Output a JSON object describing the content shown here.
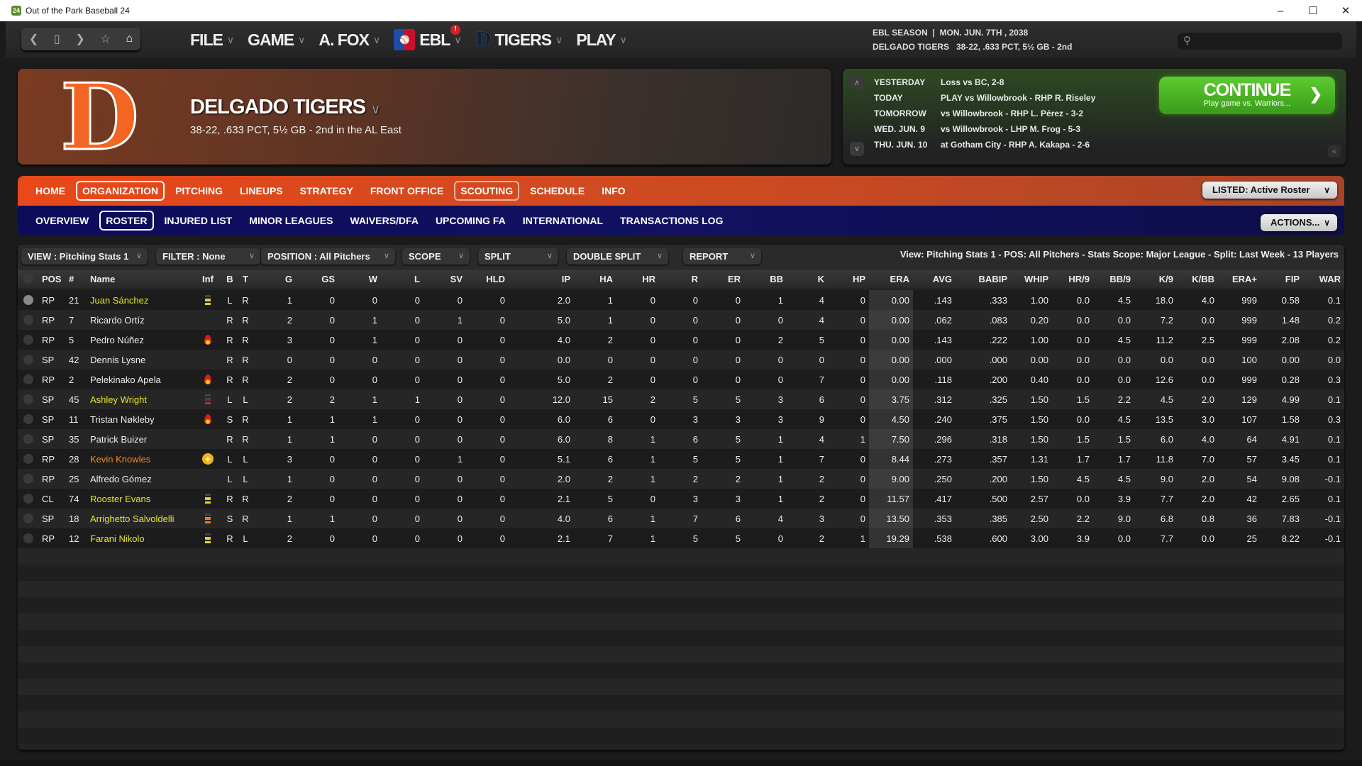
{
  "window": {
    "title": "Out of the Park Baseball 24",
    "app_icon": "24",
    "controls": [
      "–",
      "☐",
      "✕"
    ]
  },
  "topnav": {
    "nav_icons": [
      "back-icon",
      "bookmark-icon",
      "forward-icon",
      "star-icon",
      "home-icon"
    ],
    "menus": [
      {
        "label": "FILE"
      },
      {
        "label": "GAME"
      },
      {
        "label": "A. FOX"
      },
      {
        "label": "EBL",
        "badge": "!"
      },
      {
        "label": "TIGERS"
      },
      {
        "label": "PLAY"
      }
    ],
    "season_line1": "EBL SEASON  |  MON. JUN. 7TH , 2038",
    "season_line2": "DELGADO TIGERS   38-22, .633 PCT, 5½ GB - 2nd",
    "search_placeholder": ""
  },
  "team": {
    "name": "DELGADO TIGERS",
    "record": "38-22, .633 PCT, 5½ GB - 2nd in the AL East",
    "logo_letter": "D",
    "logo_color": "#f26522"
  },
  "schedule": {
    "rows": [
      {
        "day": "YESTERDAY",
        "text": "Loss vs BC, 2-8"
      },
      {
        "day": "TODAY",
        "text": "PLAY vs Willowbrook - RHP R. Riseley"
      },
      {
        "day": "TOMORROW",
        "text": "vs Willowbrook - RHP L. Pérez - 3-2"
      },
      {
        "day": "WED. JUN. 9",
        "text": "vs Willowbrook - LHP M. Frog - 5-3"
      },
      {
        "day": "THU. JUN. 10",
        "text": "at Gotham City - RHP A. Kakapa - 2-6"
      }
    ],
    "continue_label": "CONTINUE",
    "continue_sub": "Play game vs. Warriors..."
  },
  "org_tabs": [
    {
      "label": "HOME"
    },
    {
      "label": "ORGANIZATION",
      "active": true
    },
    {
      "label": "PITCHING"
    },
    {
      "label": "LINEUPS"
    },
    {
      "label": "STRATEGY"
    },
    {
      "label": "FRONT OFFICE"
    },
    {
      "label": "SCOUTING",
      "outlined": true
    },
    {
      "label": "SCHEDULE"
    },
    {
      "label": "INFO"
    }
  ],
  "sub_tabs": [
    {
      "label": "OVERVIEW"
    },
    {
      "label": "ROSTER",
      "active": true
    },
    {
      "label": "INJURED LIST"
    },
    {
      "label": "MINOR LEAGUES"
    },
    {
      "label": "WAIVERS/DFA"
    },
    {
      "label": "UPCOMING FA"
    },
    {
      "label": "INTERNATIONAL"
    },
    {
      "label": "TRANSACTIONS LOG"
    }
  ],
  "listed_label": "LISTED: Active Roster",
  "actions_label": "ACTIONS...",
  "filters": [
    {
      "label": "VIEW : Pitching Stats 1"
    },
    {
      "label": "FILTER : None"
    },
    {
      "label": "POSITION : All Pitchers"
    },
    {
      "label": "SCOPE"
    },
    {
      "label": "SPLIT"
    },
    {
      "label": "DOUBLE SPLIT"
    },
    {
      "label": "REPORT"
    }
  ],
  "view_description": "View: Pitching Stats 1 - POS: All Pitchers - Stats Scope: Major League - Split: Last Week - 13 Players",
  "columns": [
    "",
    "POS",
    "#",
    "Name",
    "Inf",
    "B",
    "T",
    "G",
    "GS",
    "W",
    "L",
    "SV",
    "HLD",
    "IP",
    "HA",
    "HR",
    "R",
    "ER",
    "BB",
    "K",
    "HP",
    "ERA",
    "AVG",
    "BABIP",
    "WHIP",
    "HR/9",
    "BB/9",
    "K/9",
    "K/BB",
    "ERA+",
    "FIP",
    "WAR"
  ],
  "name_colors": {
    "prospect": "#e6e62a",
    "highlight": "#f08a24",
    "normal": "#eeeeee"
  },
  "players": [
    {
      "sel": true,
      "pos": "RP",
      "num": "21",
      "name": "Juan Sánchez",
      "tag": "prospect",
      "inf": "bars-yellow",
      "b": "L",
      "t": "R",
      "stats": [
        "1",
        "0",
        "0",
        "0",
        "0",
        "0",
        "2.0",
        "1",
        "0",
        "0",
        "0",
        "1",
        "4",
        "0",
        "0.00",
        ".143",
        ".333",
        "1.00",
        "0.0",
        "4.5",
        "18.0",
        "4.0",
        "999",
        "0.58",
        "0.1"
      ]
    },
    {
      "pos": "RP",
      "num": "7",
      "name": "Ricardo Ortíz",
      "tag": "normal",
      "inf": "",
      "b": "R",
      "t": "R",
      "stats": [
        "2",
        "0",
        "1",
        "0",
        "1",
        "0",
        "5.0",
        "1",
        "0",
        "0",
        "0",
        "0",
        "4",
        "0",
        "0.00",
        ".062",
        ".083",
        "0.20",
        "0.0",
        "0.0",
        "7.2",
        "0.0",
        "999",
        "1.48",
        "0.2"
      ]
    },
    {
      "pos": "RP",
      "num": "5",
      "name": "Pedro Núñez",
      "tag": "normal",
      "inf": "flame",
      "b": "R",
      "t": "R",
      "stats": [
        "3",
        "0",
        "1",
        "0",
        "0",
        "0",
        "4.0",
        "2",
        "0",
        "0",
        "0",
        "2",
        "5",
        "0",
        "0.00",
        ".143",
        ".222",
        "1.00",
        "0.0",
        "4.5",
        "11.2",
        "2.5",
        "999",
        "2.08",
        "0.2"
      ]
    },
    {
      "pos": "SP",
      "num": "42",
      "name": "Dennis Lysne",
      "tag": "normal",
      "inf": "",
      "b": "R",
      "t": "R",
      "stats": [
        "0",
        "0",
        "0",
        "0",
        "0",
        "0",
        "0.0",
        "0",
        "0",
        "0",
        "0",
        "0",
        "0",
        "0",
        "0.00",
        ".000",
        ".000",
        "0.00",
        "0.0",
        "0.0",
        "0.0",
        "0.0",
        "100",
        "0.00",
        "0.0"
      ]
    },
    {
      "pos": "RP",
      "num": "2",
      "name": "Pelekinako Apela",
      "tag": "normal",
      "inf": "flame",
      "b": "R",
      "t": "R",
      "stats": [
        "2",
        "0",
        "0",
        "0",
        "0",
        "0",
        "5.0",
        "2",
        "0",
        "0",
        "0",
        "0",
        "7",
        "0",
        "0.00",
        ".118",
        ".200",
        "0.40",
        "0.0",
        "0.0",
        "12.6",
        "0.0",
        "999",
        "0.28",
        "0.3"
      ]
    },
    {
      "pos": "SP",
      "num": "45",
      "name": "Ashley Wright",
      "tag": "prospect",
      "inf": "bars-red",
      "b": "L",
      "t": "L",
      "stats": [
        "2",
        "2",
        "1",
        "1",
        "0",
        "0",
        "12.0",
        "15",
        "2",
        "5",
        "5",
        "3",
        "6",
        "0",
        "3.75",
        ".312",
        ".325",
        "1.50",
        "1.5",
        "2.2",
        "4.5",
        "2.0",
        "129",
        "4.99",
        "0.1"
      ]
    },
    {
      "pos": "SP",
      "num": "11",
      "name": "Tristan Nøkleby",
      "tag": "normal",
      "inf": "flame",
      "b": "S",
      "t": "R",
      "stats": [
        "1",
        "1",
        "1",
        "0",
        "0",
        "0",
        "6.0",
        "6",
        "0",
        "3",
        "3",
        "3",
        "9",
        "0",
        "4.50",
        ".240",
        ".375",
        "1.50",
        "0.0",
        "4.5",
        "13.5",
        "3.0",
        "107",
        "1.58",
        "0.3"
      ]
    },
    {
      "pos": "SP",
      "num": "35",
      "name": "Patrick Buizer",
      "tag": "normal",
      "inf": "",
      "b": "R",
      "t": "R",
      "stats": [
        "1",
        "1",
        "0",
        "0",
        "0",
        "0",
        "6.0",
        "8",
        "1",
        "6",
        "5",
        "1",
        "4",
        "1",
        "7.50",
        ".296",
        ".318",
        "1.50",
        "1.5",
        "1.5",
        "6.0",
        "4.0",
        "64",
        "4.91",
        "0.1"
      ]
    },
    {
      "pos": "RP",
      "num": "28",
      "name": "Kevin Knowles",
      "tag": "highlight",
      "inf": "plus",
      "b": "L",
      "t": "L",
      "stats": [
        "3",
        "0",
        "0",
        "0",
        "1",
        "0",
        "5.1",
        "6",
        "1",
        "5",
        "5",
        "1",
        "7",
        "0",
        "8.44",
        ".273",
        ".357",
        "1.31",
        "1.7",
        "1.7",
        "11.8",
        "7.0",
        "57",
        "3.45",
        "0.1"
      ]
    },
    {
      "pos": "RP",
      "num": "25",
      "name": "Alfredo Gómez",
      "tag": "normal",
      "inf": "",
      "b": "L",
      "t": "L",
      "stats": [
        "1",
        "0",
        "0",
        "0",
        "0",
        "0",
        "2.0",
        "2",
        "1",
        "2",
        "2",
        "1",
        "2",
        "0",
        "9.00",
        ".250",
        ".200",
        "1.50",
        "4.5",
        "4.5",
        "9.0",
        "2.0",
        "54",
        "9.08",
        "-0.1"
      ]
    },
    {
      "pos": "CL",
      "num": "74",
      "name": "Rooster Evans",
      "tag": "prospect",
      "inf": "bars-yellow",
      "b": "R",
      "t": "R",
      "stats": [
        "2",
        "0",
        "0",
        "0",
        "0",
        "0",
        "2.1",
        "5",
        "0",
        "3",
        "3",
        "1",
        "2",
        "0",
        "11.57",
        ".417",
        ".500",
        "2.57",
        "0.0",
        "3.9",
        "7.7",
        "2.0",
        "42",
        "2.65",
        "0.1"
      ]
    },
    {
      "pos": "SP",
      "num": "18",
      "name": "Arrighetto Salvoldelli",
      "tag": "prospect",
      "inf": "bars-orange",
      "b": "S",
      "t": "R",
      "stats": [
        "1",
        "1",
        "0",
        "0",
        "0",
        "0",
        "4.0",
        "6",
        "1",
        "7",
        "6",
        "4",
        "3",
        "0",
        "13.50",
        ".353",
        ".385",
        "2.50",
        "2.2",
        "9.0",
        "6.8",
        "0.8",
        "36",
        "7.83",
        "-0.1"
      ]
    },
    {
      "pos": "RP",
      "num": "12",
      "name": "Farani Nikolo",
      "tag": "prospect",
      "inf": "bars-yellow",
      "b": "R",
      "t": "L",
      "stats": [
        "2",
        "0",
        "0",
        "0",
        "0",
        "0",
        "2.1",
        "7",
        "1",
        "5",
        "5",
        "0",
        "2",
        "1",
        "19.29",
        ".538",
        ".600",
        "3.00",
        "3.9",
        "0.0",
        "7.7",
        "0.0",
        "25",
        "8.22",
        "-0.1"
      ]
    }
  ]
}
